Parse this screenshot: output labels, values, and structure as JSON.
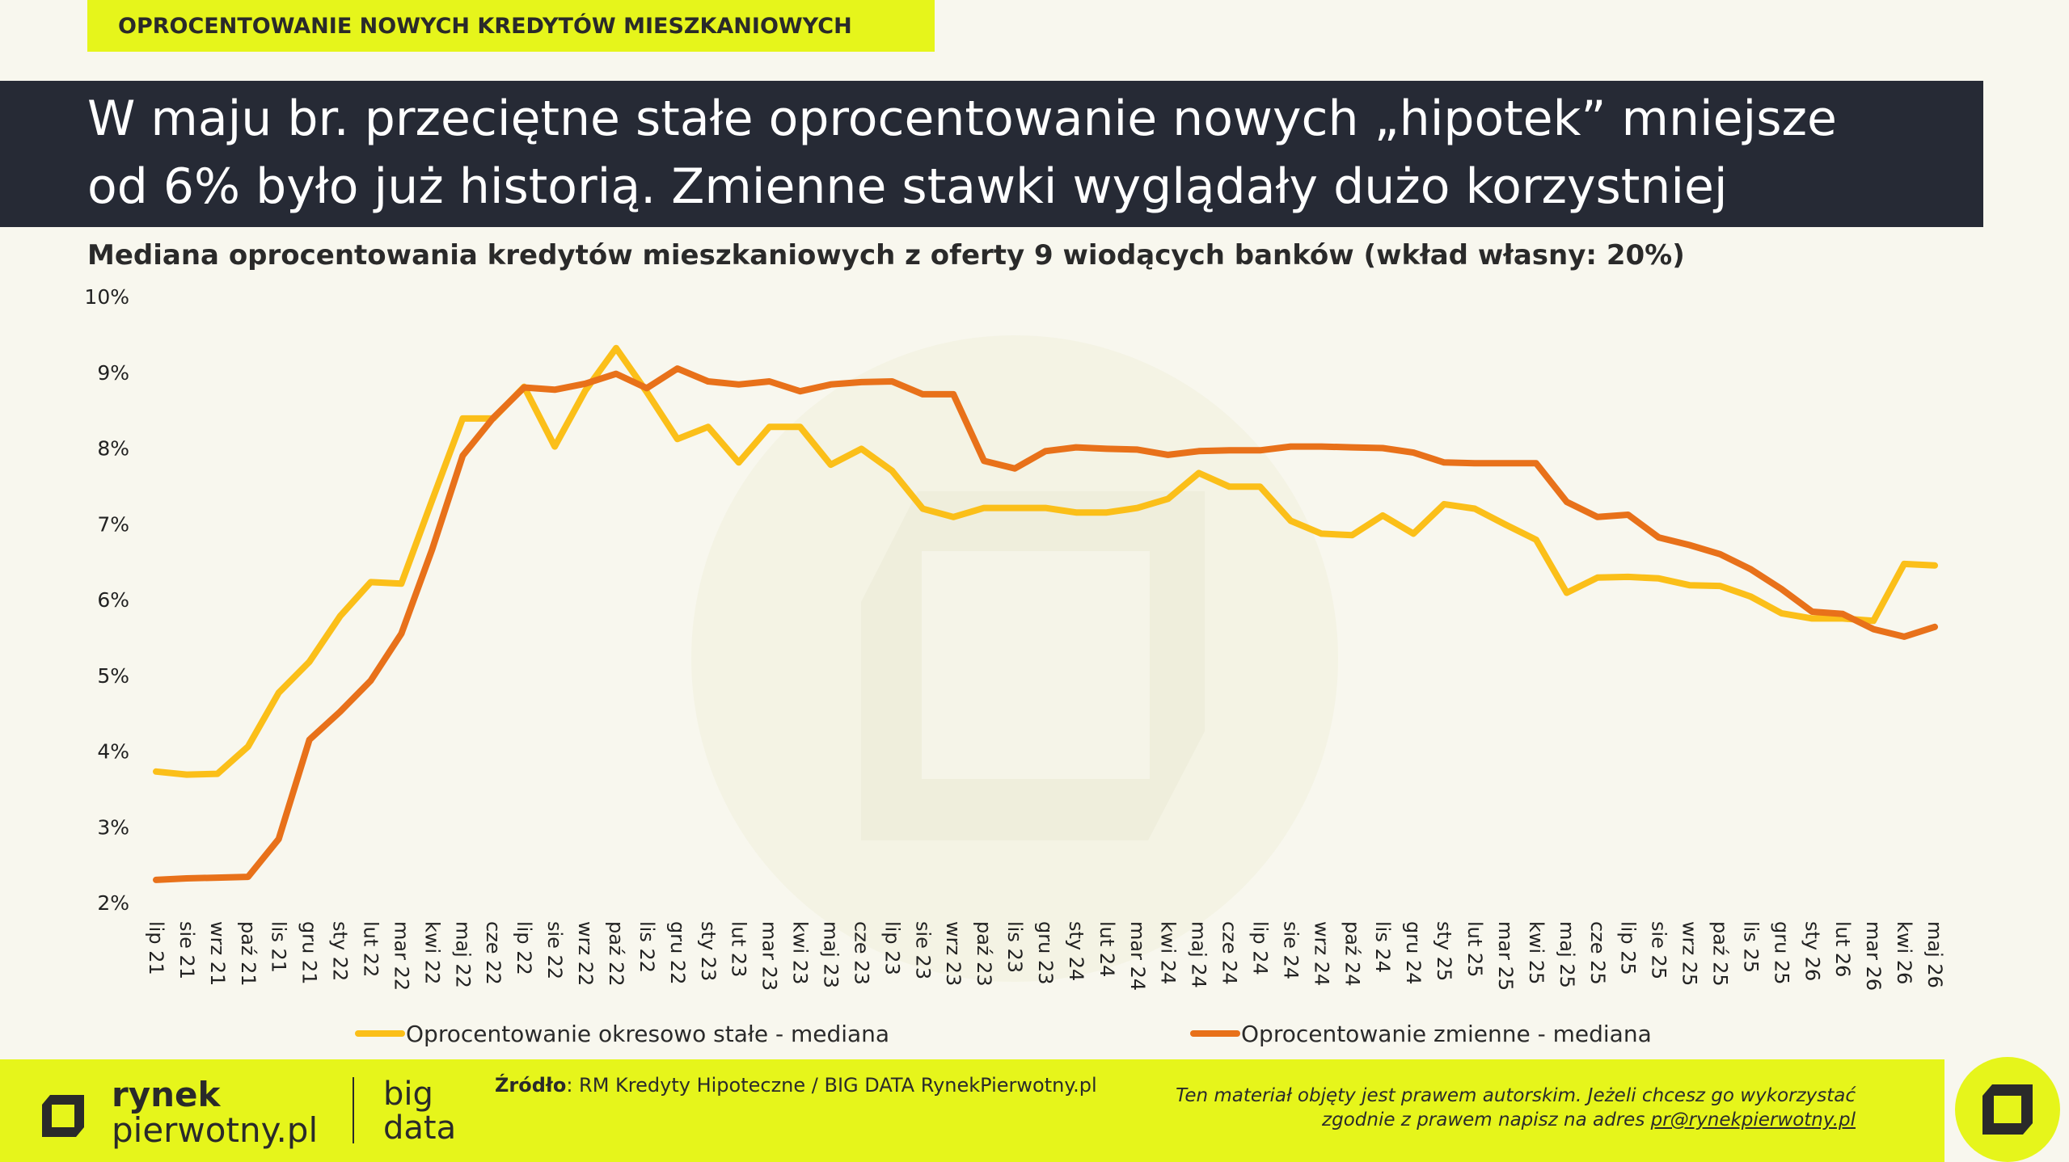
{
  "top_tag": "OPROCENTOWANIE NOWYCH KREDYTÓW MIESZKANIOWYCH",
  "headline": {
    "line1": "W maju br. przeciętne stałe oprocentowanie nowych „hipotek” mniejsze",
    "line2": "od 6% było już historią. Zmienne stawki wyglądały dużo korzystniej"
  },
  "subtitle": "Mediana oprocentowania kredytów mieszkaniowych z oferty 9 wiodących banków (wkład własny: 20%)",
  "colors": {
    "fixed": "#fbbf19",
    "variable": "#e8711a",
    "accent": "#e6f51b",
    "dark": "#262a35"
  },
  "chart_data": {
    "type": "line",
    "y_tick_labels": [
      "2%",
      "3%",
      "4%",
      "5%",
      "6%",
      "7%",
      "8%",
      "9%",
      "10%"
    ],
    "ylim": [
      2,
      10
    ],
    "grid": false,
    "legend_position": "bottom",
    "categories": [
      "lip 21",
      "sie 21",
      "wrz 21",
      "paź 21",
      "lis 21",
      "gru 21",
      "sty 22",
      "lut 22",
      "mar 22",
      "kwi 22",
      "maj 22",
      "cze 22",
      "lip 22",
      "sie 22",
      "wrz 22",
      "paź 22",
      "lis 22",
      "gru 22",
      "sty 23",
      "lut 23",
      "mar 23",
      "kwi 23",
      "maj 23",
      "cze 23",
      "lip 23",
      "sie 23",
      "wrz 23",
      "paź 23",
      "lis 23",
      "gru 23",
      "sty 24",
      "lut 24",
      "mar 24",
      "kwi 24",
      "maj 24",
      "cze 24",
      "lip 24",
      "sie 24",
      "wrz 24",
      "paź 24",
      "lis 24",
      "gru 24",
      "sty 25",
      "lut 25",
      "mar 25",
      "kwi 25",
      "maj 25",
      "cze 25",
      "lip 25",
      "sie 25",
      "wrz 25",
      "paź 25",
      "lis 25",
      "gru 25",
      "sty 26",
      "lut 26",
      "mar 26",
      "kwi 26",
      "maj 26"
    ],
    "series": [
      {
        "name": "Oprocentowanie okresowo stałe - mediana",
        "color": "#fbbf19",
        "values": [
          3.73,
          3.69,
          3.7,
          4.06,
          4.77,
          5.18,
          5.78,
          6.23,
          6.21,
          7.31,
          8.39,
          8.39,
          8.81,
          8.02,
          8.76,
          9.32,
          8.74,
          8.12,
          8.28,
          7.81,
          8.28,
          8.28,
          7.78,
          7.99,
          7.7,
          7.2,
          7.09,
          7.21,
          7.21,
          7.21,
          7.15,
          7.15,
          7.21,
          7.33,
          7.67,
          7.49,
          7.49,
          7.04,
          6.87,
          6.85,
          7.11,
          6.87,
          7.26,
          7.2,
          6.99,
          6.79,
          6.09,
          6.29,
          6.3,
          6.28,
          6.19,
          6.18,
          6.04,
          5.82,
          5.75,
          5.75,
          5.72,
          6.47,
          6.45
        ]
      },
      {
        "name": "Oprocentowanie zmienne - mediana",
        "color": "#e8711a",
        "values": [
          2.3,
          2.32,
          2.33,
          2.34,
          2.84,
          4.15,
          4.52,
          4.93,
          5.55,
          6.66,
          7.9,
          8.4,
          8.8,
          8.77,
          8.85,
          8.98,
          8.79,
          9.05,
          8.88,
          8.84,
          8.88,
          8.75,
          8.84,
          8.87,
          8.88,
          8.71,
          8.71,
          7.83,
          7.73,
          7.96,
          8.01,
          7.99,
          7.98,
          7.91,
          7.96,
          7.97,
          7.97,
          8.02,
          8.02,
          8.01,
          8.0,
          7.94,
          7.81,
          7.8,
          7.8,
          7.8,
          7.29,
          7.09,
          7.12,
          6.82,
          6.72,
          6.6,
          6.4,
          6.14,
          5.84,
          5.81,
          5.61,
          5.51,
          5.64
        ]
      }
    ]
  },
  "footer": {
    "logo_line1": "rynek",
    "logo_line2": "pierwotny.pl",
    "bigdata_line1": "big",
    "bigdata_line2": "data",
    "source_label": "Źródło",
    "source_text": ": RM Kredyty Hipoteczne / BIG DATA RynekPierwotny.pl",
    "copyright_line1": "Ten materiał objęty jest prawem autorskim. Jeżeli chcesz go wykorzystać",
    "copyright_line2_pre": "zgodnie z prawem napisz na adres ",
    "copyright_email": "pr@rynekpierwotny.pl"
  }
}
